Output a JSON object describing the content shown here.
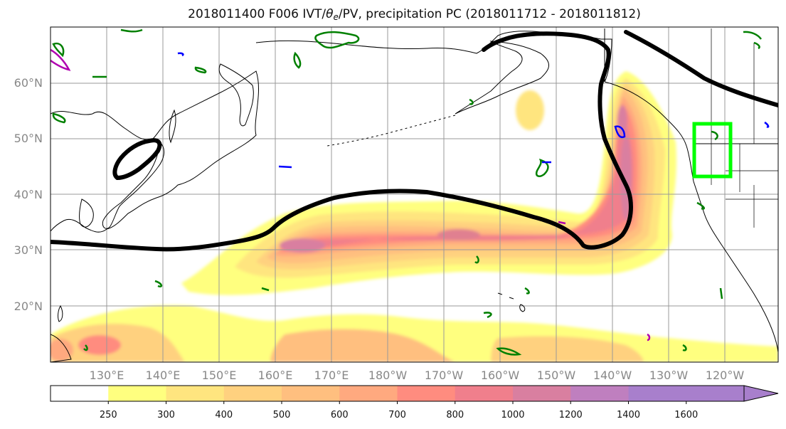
{
  "title": {
    "prefix": "2018011400 F006 IVT/",
    "theta": "θ",
    "theta_sub": "e",
    "suffix": "/PV, precipitation PC (2018011712 - 2018011812)"
  },
  "map": {
    "lat_labels": [
      "60°N",
      "50°N",
      "40°N",
      "30°N",
      "20°N"
    ],
    "lon_labels": [
      "130°E",
      "140°E",
      "150°E",
      "160°E",
      "170°E",
      "180°W",
      "170°W",
      "160°W",
      "150°W",
      "140°W",
      "130°W",
      "120°W"
    ],
    "ivt_fill_colors": [
      "#ffff7f",
      "#ffe57f",
      "#ffd17f",
      "#ffbf7f",
      "#ffa97f",
      "#ff8c7f",
      "#f07f8c",
      "#d97fa0",
      "#bf7fbf",
      "#a87fcc"
    ],
    "theta_contour_color": "#000000",
    "pv_contour_colors": [
      "#008000",
      "#0000ff",
      "#b000b0"
    ],
    "highlight_box_color": "#00ff00"
  },
  "colorbar": {
    "ticks": [
      "250",
      "300",
      "400",
      "500",
      "600",
      "700",
      "800",
      "1000",
      "1200",
      "1400",
      "1600"
    ],
    "colors": [
      "#ffffff",
      "#ffff7f",
      "#ffe57f",
      "#ffd17f",
      "#ffbf7f",
      "#ffa97f",
      "#ff8c7f",
      "#f07f8c",
      "#d97fa0",
      "#bf7fbf",
      "#a87fcc",
      "#a87fcc"
    ]
  }
}
